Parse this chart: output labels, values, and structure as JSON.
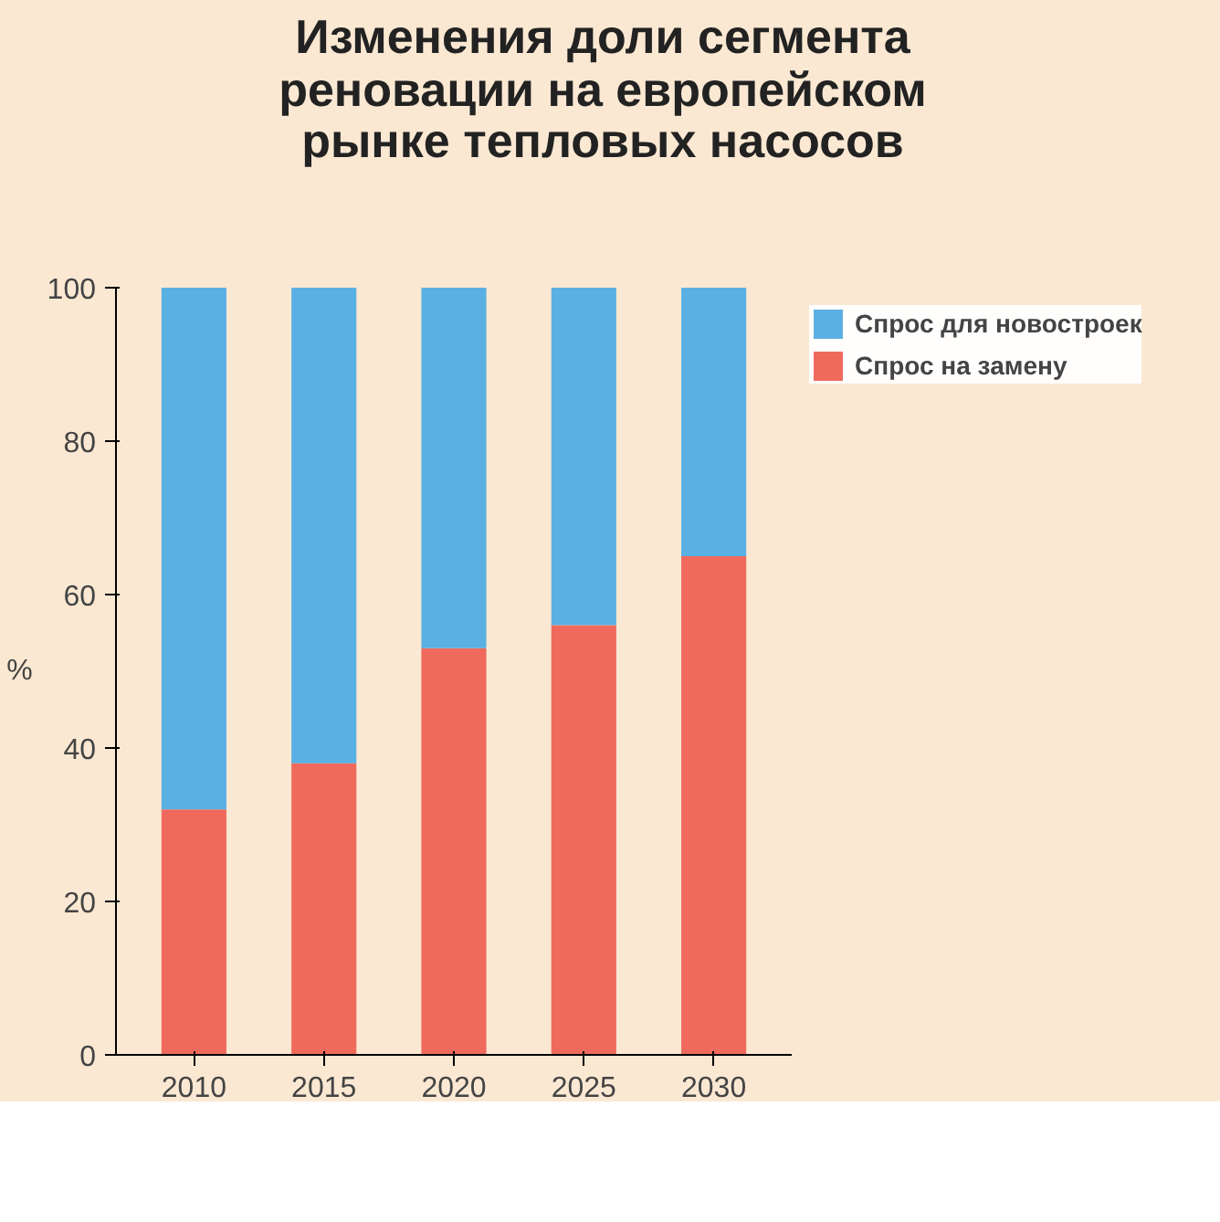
{
  "chart_data": {
    "type": "bar",
    "stacked": true,
    "title": "Изменения доли сегмента реновации на европейском рынке тепловых насосов",
    "ylabel": "%",
    "categories": [
      "2010",
      "2015",
      "2020",
      "2025",
      "2030"
    ],
    "series": [
      {
        "name": "Спрос на замену",
        "color": "#ef6a5c",
        "values": [
          32,
          38,
          53,
          56,
          65
        ]
      },
      {
        "name": "Спрос для новостроек",
        "color": "#5bb0e3",
        "values": [
          68,
          62,
          47,
          44,
          35
        ]
      }
    ],
    "ylim": [
      0,
      100
    ],
    "yticks": [
      0,
      20,
      40,
      60,
      80,
      100
    ],
    "grid": false,
    "legend": "right"
  }
}
